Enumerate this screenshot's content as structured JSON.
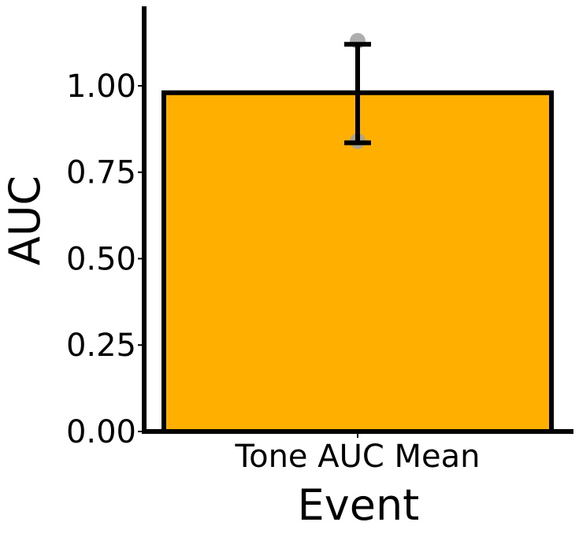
{
  "chart_data": {
    "type": "bar",
    "title": "",
    "xlabel": "Event",
    "ylabel": "AUC",
    "categories": [
      "Tone AUC Mean"
    ],
    "values": [
      0.98
    ],
    "error_low": [
      0.835
    ],
    "error_high": [
      1.12
    ],
    "points": [
      [
        1.13,
        0.84
      ]
    ],
    "ylim": [
      0,
      1.23
    ],
    "yticks": [
      0.0,
      0.25,
      0.5,
      0.75,
      1.0
    ],
    "ytick_labels": [
      "0.00",
      "0.25",
      "0.50",
      "0.75",
      "1.00"
    ],
    "grid": false,
    "bar_color": "#FFAF00",
    "bar_edge_color": "#000000",
    "errorbar_color": "#000000",
    "point_color": "#A0A0A0"
  }
}
